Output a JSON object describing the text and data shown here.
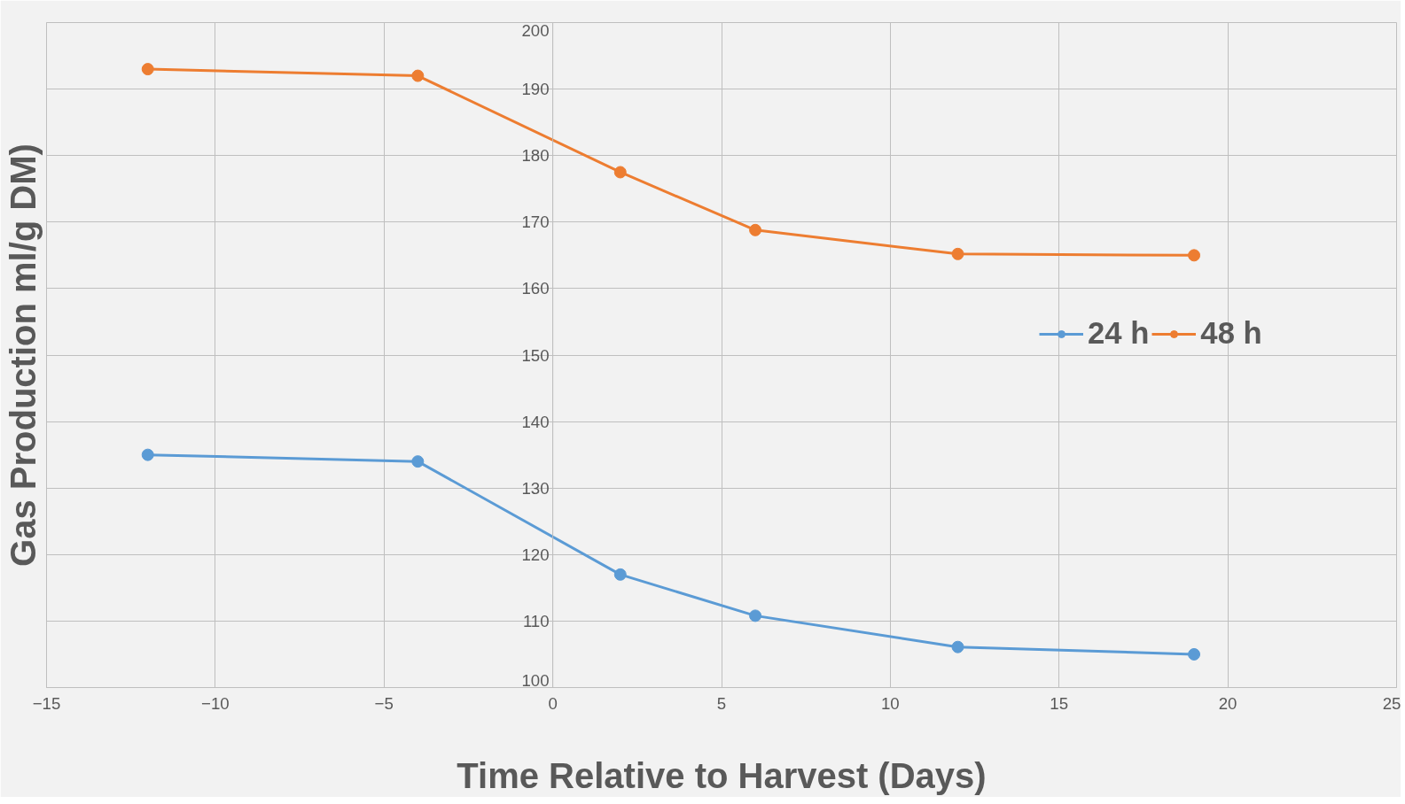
{
  "chart_data": {
    "type": "line",
    "xlabel": "Time Relative to Harvest (Days)",
    "ylabel": "Gas Production ml/g DM)",
    "series": [
      {
        "name": "24 h",
        "color": "#5b9bd5",
        "x": [
          -12,
          -4,
          2,
          6,
          12,
          19
        ],
        "values": [
          135,
          134,
          117,
          110.8,
          106.1,
          105
        ]
      },
      {
        "name": "48 h",
        "color": "#ed7d31",
        "x": [
          -12,
          -4,
          2,
          6,
          12,
          19
        ],
        "values": [
          193,
          192,
          177.5,
          168.8,
          165.2,
          165
        ]
      }
    ],
    "xlim": [
      -15,
      25
    ],
    "xticks": [
      -15,
      -10,
      -5,
      0,
      5,
      10,
      15,
      20,
      25
    ],
    "ylim": [
      100,
      200
    ],
    "yticks": [
      100,
      110,
      120,
      130,
      140,
      150,
      160,
      170,
      180,
      190,
      200
    ],
    "grid": true,
    "legend": "right",
    "marker": "circle",
    "line_style": "solid"
  }
}
